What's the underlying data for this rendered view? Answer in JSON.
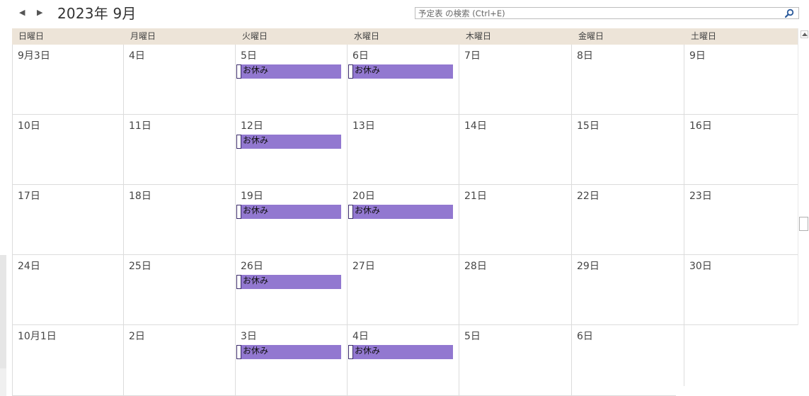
{
  "toolbar": {
    "prev_glyph": "◀",
    "next_glyph": "▶",
    "month_title": "2023年 9月"
  },
  "search": {
    "placeholder": "予定表 の検索 (Ctrl+E)"
  },
  "weekdays": [
    "日曜日",
    "月曜日",
    "火曜日",
    "水曜日",
    "木曜日",
    "金曜日",
    "土曜日"
  ],
  "weeks": [
    {
      "days": [
        {
          "label": "9月3日",
          "events": []
        },
        {
          "label": "4日",
          "events": []
        },
        {
          "label": "5日",
          "events": [
            "お休み"
          ]
        },
        {
          "label": "6日",
          "events": [
            "お休み"
          ]
        },
        {
          "label": "7日",
          "events": []
        },
        {
          "label": "8日",
          "events": []
        },
        {
          "label": "9日",
          "events": []
        }
      ]
    },
    {
      "days": [
        {
          "label": "10日",
          "events": []
        },
        {
          "label": "11日",
          "events": []
        },
        {
          "label": "12日",
          "events": [
            "お休み"
          ]
        },
        {
          "label": "13日",
          "events": []
        },
        {
          "label": "14日",
          "events": []
        },
        {
          "label": "15日",
          "events": []
        },
        {
          "label": "16日",
          "events": []
        }
      ]
    },
    {
      "days": [
        {
          "label": "17日",
          "events": []
        },
        {
          "label": "18日",
          "events": []
        },
        {
          "label": "19日",
          "events": [
            "お休み"
          ]
        },
        {
          "label": "20日",
          "events": [
            "お休み"
          ]
        },
        {
          "label": "21日",
          "events": []
        },
        {
          "label": "22日",
          "events": []
        },
        {
          "label": "23日",
          "events": []
        }
      ]
    },
    {
      "days": [
        {
          "label": "24日",
          "events": []
        },
        {
          "label": "25日",
          "events": []
        },
        {
          "label": "26日",
          "events": [
            "お休み"
          ]
        },
        {
          "label": "27日",
          "events": []
        },
        {
          "label": "28日",
          "events": []
        },
        {
          "label": "29日",
          "events": []
        },
        {
          "label": "30日",
          "events": []
        }
      ]
    },
    {
      "days": [
        {
          "label": "10月1日",
          "events": []
        },
        {
          "label": "2日",
          "events": []
        },
        {
          "label": "3日",
          "events": [
            "お休み"
          ]
        },
        {
          "label": "4日",
          "events": [
            "お休み"
          ]
        },
        {
          "label": "5日",
          "events": []
        },
        {
          "label": "6日",
          "events": []
        },
        {
          "label": "",
          "events": []
        }
      ]
    }
  ],
  "colors": {
    "header_bg": "#ede4d8",
    "event_bg": "#9278d0",
    "gridline": "#dcdcdc"
  }
}
